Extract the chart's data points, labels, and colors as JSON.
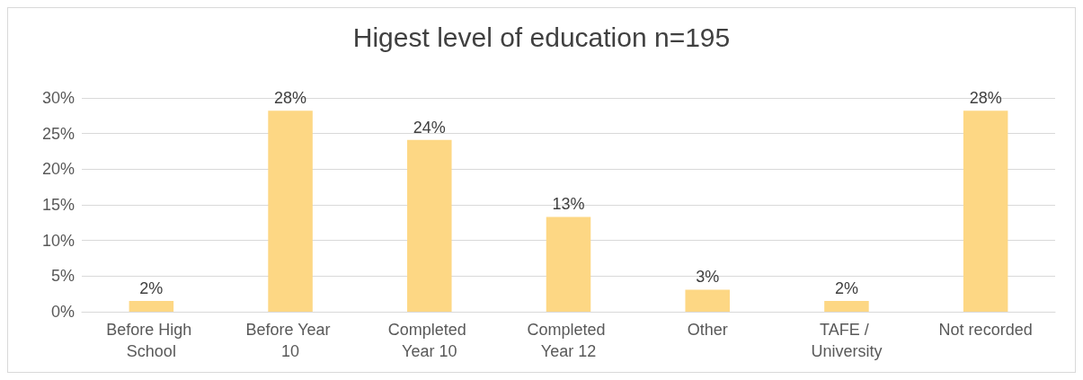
{
  "chart_data": {
    "type": "bar",
    "title": "Higest level of education n=195",
    "categories": [
      "Before High School",
      "Before Year 10",
      "Completed Year 10",
      "Completed Year 12",
      "Other",
      "TAFE / University",
      "Not recorded"
    ],
    "values": [
      1.5,
      28.2,
      24.1,
      13.3,
      3.1,
      1.5,
      28.2
    ],
    "value_labels": [
      "2%",
      "28%",
      "24%",
      "13%",
      "3%",
      "2%",
      "28%"
    ],
    "color": "#fdd784",
    "ylim": [
      0,
      30
    ],
    "yticks": [
      {
        "value": 0,
        "label": "0%"
      },
      {
        "value": 5,
        "label": "5%"
      },
      {
        "value": 10,
        "label": "10%"
      },
      {
        "value": 15,
        "label": "15%"
      },
      {
        "value": 20,
        "label": "20%"
      },
      {
        "value": 25,
        "label": "25%"
      },
      {
        "value": 30,
        "label": "30%"
      }
    ],
    "grid": true
  }
}
